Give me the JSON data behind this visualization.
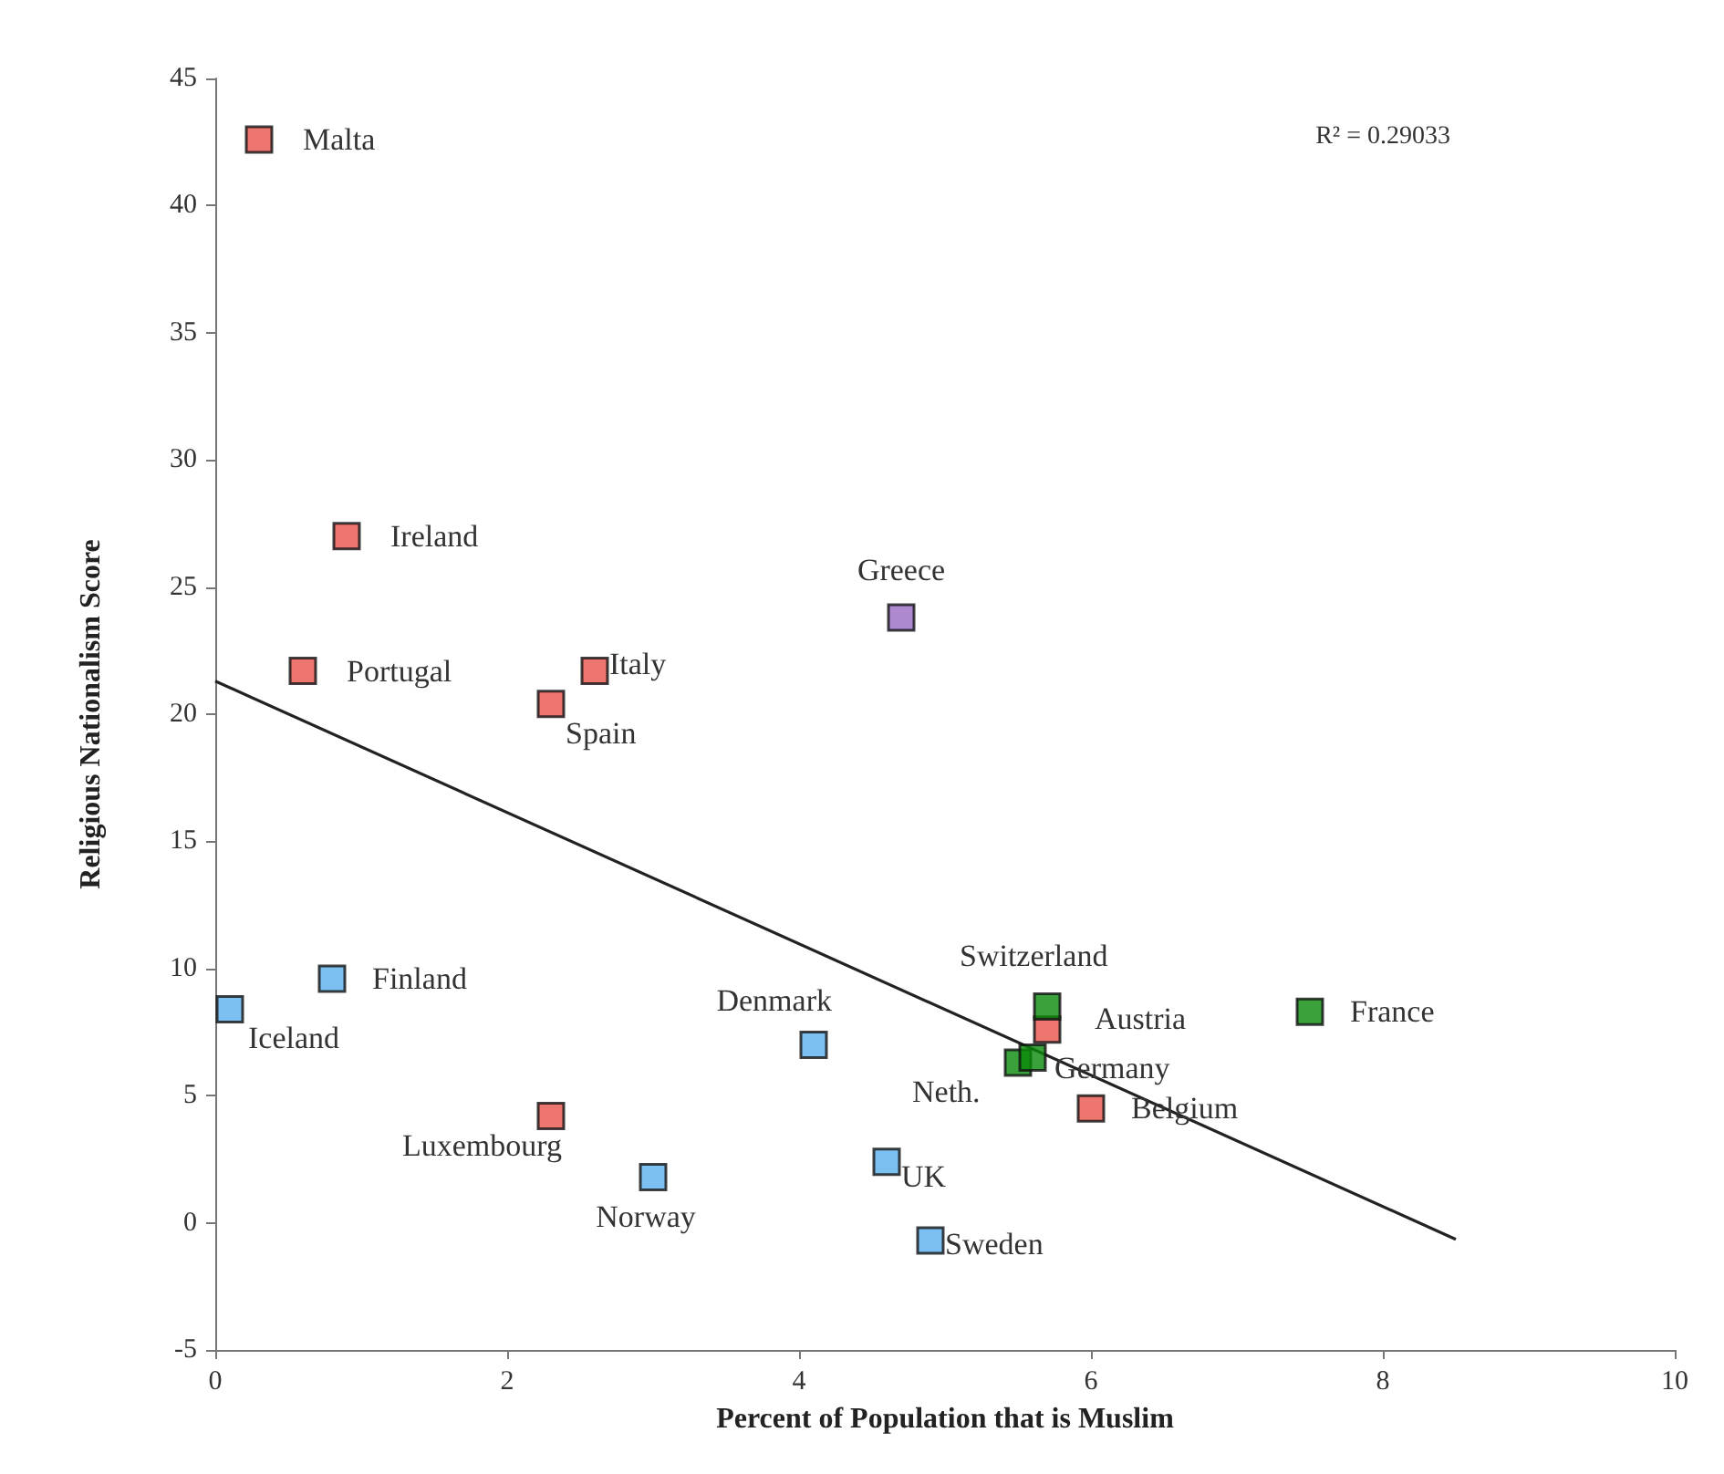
{
  "chart_data": {
    "type": "scatter",
    "xlabel": "Percent of Population that is Muslim",
    "ylabel": "Religious Nationalism Score",
    "xlim": [
      0,
      10
    ],
    "xticks": [
      0,
      2,
      4,
      6,
      8,
      10
    ],
    "ylim": [
      -5,
      45
    ],
    "yticks": [
      -5,
      0,
      5,
      10,
      15,
      20,
      25,
      30,
      35,
      40,
      45
    ],
    "grid": false,
    "marker": "square",
    "series": [
      {
        "color": "#e8544c",
        "x": [
          0.3,
          0.9,
          0.6,
          2.6,
          2.3,
          2.3,
          5.7,
          6.0
        ],
        "values": [
          42.6,
          27.0,
          21.7,
          21.7,
          20.4,
          4.2,
          7.6,
          4.5
        ]
      },
      {
        "color": "#9b6cc4",
        "x": [
          4.7
        ],
        "values": [
          23.8
        ]
      },
      {
        "color": "#5ab0ec",
        "x": [
          0.8,
          0.1,
          4.1,
          3.0,
          4.6,
          4.9
        ],
        "values": [
          9.6,
          8.4,
          7.0,
          1.8,
          2.4,
          -0.7
        ]
      },
      {
        "color": "#0a8a0a",
        "x": [
          5.7,
          5.5,
          5.6,
          7.5
        ],
        "values": [
          8.5,
          6.3,
          6.5,
          8.3
        ]
      },
      {
        "type": "line",
        "color": "#222222",
        "x": [
          0,
          8.5
        ],
        "values": [
          21.3,
          -0.65
        ],
        "marker": "none",
        "line_style": "solid"
      }
    ],
    "annotations": [
      {
        "text": "Malta",
        "x": 0.3,
        "y": 42.6
      },
      {
        "text": "Ireland",
        "x": 0.9,
        "y": 27.0
      },
      {
        "text": "Portugal",
        "x": 0.6,
        "y": 21.7
      },
      {
        "text": "Italy",
        "x": 2.6,
        "y": 21.7
      },
      {
        "text": "Spain",
        "x": 2.3,
        "y": 20.4
      },
      {
        "text": "Greece",
        "x": 4.7,
        "y": 23.8
      },
      {
        "text": "Finland",
        "x": 0.8,
        "y": 9.6
      },
      {
        "text": "Iceland",
        "x": 0.1,
        "y": 8.4
      },
      {
        "text": "Denmark",
        "x": 4.1,
        "y": 7.0
      },
      {
        "text": "Luxembourg",
        "x": 2.3,
        "y": 4.2
      },
      {
        "text": "Norway",
        "x": 3.0,
        "y": 1.8
      },
      {
        "text": "UK",
        "x": 4.6,
        "y": 2.4
      },
      {
        "text": "Sweden",
        "x": 4.9,
        "y": -0.7
      },
      {
        "text": "Switzerland",
        "x": 5.7,
        "y": 8.5
      },
      {
        "text": "Austria",
        "x": 5.7,
        "y": 7.6
      },
      {
        "text": "France",
        "x": 7.5,
        "y": 8.3
      },
      {
        "text": "Neth.",
        "x": 5.5,
        "y": 6.3
      },
      {
        "text": "Germany",
        "x": 5.6,
        "y": 6.5
      },
      {
        "text": "Belgium",
        "x": 6.0,
        "y": 4.5
      },
      "R² = 0.29033"
    ]
  }
}
